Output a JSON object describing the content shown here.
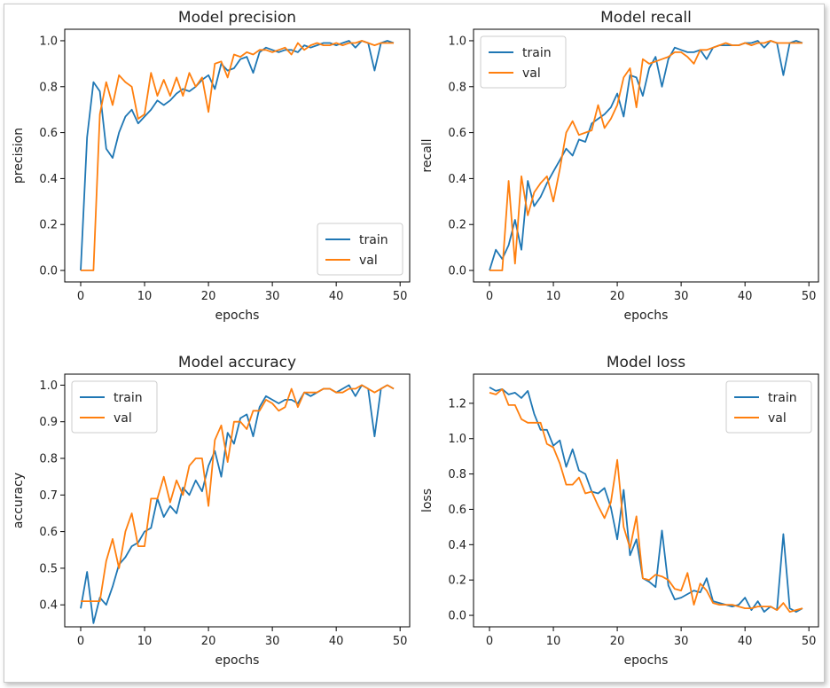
{
  "chart_data": [
    {
      "type": "line",
      "title": "Model precision",
      "xlabel": "epochs",
      "ylabel": "precision",
      "xlim": [
        -2.5,
        51.5
      ],
      "ylim": [
        -0.05,
        1.05
      ],
      "xticks": [
        0,
        10,
        20,
        30,
        40,
        50
      ],
      "yticks": [
        0.0,
        0.2,
        0.4,
        0.6,
        0.8,
        1.0
      ],
      "ytick_labels": [
        "0.0",
        "0.2",
        "0.4",
        "0.6",
        "0.8",
        "1.0"
      ],
      "legend": "bottom-right",
      "x": [
        0,
        1,
        2,
        3,
        4,
        5,
        6,
        7,
        8,
        9,
        10,
        11,
        12,
        13,
        14,
        15,
        16,
        17,
        18,
        19,
        20,
        21,
        22,
        23,
        24,
        25,
        26,
        27,
        28,
        29,
        30,
        31,
        32,
        33,
        34,
        35,
        36,
        37,
        38,
        39,
        40,
        41,
        42,
        43,
        44,
        45,
        46,
        47,
        48,
        49
      ],
      "series": [
        {
          "name": "train",
          "color": "#1f77b4",
          "values": [
            0.0,
            0.58,
            0.82,
            0.78,
            0.53,
            0.49,
            0.6,
            0.67,
            0.7,
            0.64,
            0.67,
            0.7,
            0.74,
            0.72,
            0.74,
            0.77,
            0.79,
            0.78,
            0.8,
            0.83,
            0.85,
            0.79,
            0.9,
            0.87,
            0.88,
            0.92,
            0.93,
            0.86,
            0.95,
            0.97,
            0.96,
            0.95,
            0.96,
            0.96,
            0.95,
            0.98,
            0.97,
            0.98,
            0.99,
            0.99,
            0.98,
            0.99,
            1.0,
            0.97,
            1.0,
            0.99,
            0.87,
            0.99,
            1.0,
            0.99
          ]
        },
        {
          "name": "val",
          "color": "#ff7f0e",
          "values": [
            0.0,
            0.0,
            0.0,
            0.68,
            0.82,
            0.72,
            0.85,
            0.82,
            0.8,
            0.66,
            0.68,
            0.86,
            0.76,
            0.83,
            0.76,
            0.84,
            0.76,
            0.86,
            0.8,
            0.84,
            0.69,
            0.9,
            0.91,
            0.84,
            0.94,
            0.93,
            0.95,
            0.94,
            0.96,
            0.96,
            0.95,
            0.96,
            0.97,
            0.94,
            0.99,
            0.96,
            0.98,
            0.99,
            0.98,
            0.98,
            0.99,
            0.98,
            0.99,
            0.99,
            1.0,
            0.99,
            0.98,
            0.99,
            0.99,
            0.99
          ]
        }
      ]
    },
    {
      "type": "line",
      "title": "Model recall",
      "xlabel": "epochs",
      "ylabel": "recall",
      "xlim": [
        -2.5,
        51.5
      ],
      "ylim": [
        -0.05,
        1.05
      ],
      "xticks": [
        0,
        10,
        20,
        30,
        40,
        50
      ],
      "yticks": [
        0.0,
        0.2,
        0.4,
        0.6,
        0.8,
        1.0
      ],
      "ytick_labels": [
        "0.0",
        "0.2",
        "0.4",
        "0.6",
        "0.8",
        "1.0"
      ],
      "legend": "top-left",
      "x": [
        0,
        1,
        2,
        3,
        4,
        5,
        6,
        7,
        8,
        9,
        10,
        11,
        12,
        13,
        14,
        15,
        16,
        17,
        18,
        19,
        20,
        21,
        22,
        23,
        24,
        25,
        26,
        27,
        28,
        29,
        30,
        31,
        32,
        33,
        34,
        35,
        36,
        37,
        38,
        39,
        40,
        41,
        42,
        43,
        44,
        45,
        46,
        47,
        48,
        49
      ],
      "series": [
        {
          "name": "train",
          "color": "#1f77b4",
          "values": [
            0.0,
            0.09,
            0.05,
            0.11,
            0.22,
            0.09,
            0.39,
            0.28,
            0.32,
            0.38,
            0.43,
            0.48,
            0.53,
            0.5,
            0.57,
            0.56,
            0.64,
            0.66,
            0.68,
            0.71,
            0.77,
            0.67,
            0.85,
            0.84,
            0.76,
            0.88,
            0.93,
            0.8,
            0.92,
            0.97,
            0.96,
            0.95,
            0.95,
            0.96,
            0.92,
            0.97,
            0.98,
            0.98,
            0.98,
            0.98,
            0.99,
            0.99,
            1.0,
            0.97,
            1.0,
            0.99,
            0.85,
            0.99,
            1.0,
            0.99
          ]
        },
        {
          "name": "val",
          "color": "#ff7f0e",
          "values": [
            0.0,
            0.0,
            0.0,
            0.39,
            0.03,
            0.41,
            0.24,
            0.34,
            0.38,
            0.41,
            0.3,
            0.44,
            0.6,
            0.65,
            0.59,
            0.6,
            0.61,
            0.72,
            0.62,
            0.66,
            0.72,
            0.84,
            0.88,
            0.71,
            0.92,
            0.9,
            0.91,
            0.92,
            0.93,
            0.95,
            0.95,
            0.93,
            0.9,
            0.96,
            0.96,
            0.97,
            0.98,
            0.99,
            0.98,
            0.98,
            0.99,
            0.98,
            0.99,
            0.99,
            1.0,
            0.99,
            0.99,
            0.99,
            0.99,
            0.99
          ]
        }
      ]
    },
    {
      "type": "line",
      "title": "Model accuracy",
      "xlabel": "epochs",
      "ylabel": "accuracy",
      "xlim": [
        -2.5,
        51.5
      ],
      "ylim": [
        0.34,
        1.03
      ],
      "xticks": [
        0,
        10,
        20,
        30,
        40,
        50
      ],
      "yticks": [
        0.4,
        0.5,
        0.6,
        0.7,
        0.8,
        0.9,
        1.0
      ],
      "ytick_labels": [
        "0.4",
        "0.5",
        "0.6",
        "0.7",
        "0.8",
        "0.9",
        "1.0"
      ],
      "legend": "top-left",
      "x": [
        0,
        1,
        2,
        3,
        4,
        5,
        6,
        7,
        8,
        9,
        10,
        11,
        12,
        13,
        14,
        15,
        16,
        17,
        18,
        19,
        20,
        21,
        22,
        23,
        24,
        25,
        26,
        27,
        28,
        29,
        30,
        31,
        32,
        33,
        34,
        35,
        36,
        37,
        38,
        39,
        40,
        41,
        42,
        43,
        44,
        45,
        46,
        47,
        48,
        49
      ],
      "series": [
        {
          "name": "train",
          "color": "#1f77b4",
          "values": [
            0.39,
            0.49,
            0.35,
            0.42,
            0.4,
            0.45,
            0.51,
            0.53,
            0.56,
            0.57,
            0.6,
            0.61,
            0.69,
            0.64,
            0.67,
            0.65,
            0.72,
            0.7,
            0.74,
            0.71,
            0.78,
            0.82,
            0.75,
            0.87,
            0.84,
            0.91,
            0.92,
            0.86,
            0.94,
            0.97,
            0.96,
            0.95,
            0.96,
            0.96,
            0.95,
            0.98,
            0.97,
            0.98,
            0.99,
            0.99,
            0.98,
            0.99,
            1.0,
            0.97,
            1.0,
            0.99,
            0.86,
            0.99,
            1.0,
            0.99
          ]
        },
        {
          "name": "val",
          "color": "#ff7f0e",
          "values": [
            0.41,
            0.41,
            0.41,
            0.41,
            0.52,
            0.58,
            0.5,
            0.6,
            0.65,
            0.56,
            0.56,
            0.69,
            0.69,
            0.75,
            0.68,
            0.74,
            0.7,
            0.78,
            0.8,
            0.8,
            0.67,
            0.85,
            0.89,
            0.79,
            0.9,
            0.9,
            0.88,
            0.93,
            0.93,
            0.96,
            0.95,
            0.93,
            0.94,
            0.99,
            0.94,
            0.98,
            0.98,
            0.98,
            0.99,
            0.99,
            0.98,
            0.98,
            0.99,
            0.99,
            1.0,
            0.99,
            0.98,
            0.99,
            1.0,
            0.99
          ]
        }
      ]
    },
    {
      "type": "line",
      "title": "Model loss",
      "xlabel": "epochs",
      "ylabel": "loss",
      "xlim": [
        -2.5,
        51.5
      ],
      "ylim": [
        -0.065,
        1.365
      ],
      "xticks": [
        0,
        10,
        20,
        30,
        40,
        50
      ],
      "yticks": [
        0.0,
        0.2,
        0.4,
        0.6,
        0.8,
        1.0,
        1.2
      ],
      "ytick_labels": [
        "0.0",
        "0.2",
        "0.4",
        "0.6",
        "0.8",
        "1.0",
        "1.2"
      ],
      "legend": "top-right",
      "x": [
        0,
        1,
        2,
        3,
        4,
        5,
        6,
        7,
        8,
        9,
        10,
        11,
        12,
        13,
        14,
        15,
        16,
        17,
        18,
        19,
        20,
        21,
        22,
        23,
        24,
        25,
        26,
        27,
        28,
        29,
        30,
        31,
        32,
        33,
        34,
        35,
        36,
        37,
        38,
        39,
        40,
        41,
        42,
        43,
        44,
        45,
        46,
        47,
        48,
        49
      ],
      "series": [
        {
          "name": "train",
          "color": "#1f77b4",
          "values": [
            1.29,
            1.27,
            1.28,
            1.25,
            1.26,
            1.23,
            1.27,
            1.14,
            1.05,
            1.05,
            0.96,
            0.99,
            0.84,
            0.94,
            0.82,
            0.8,
            0.7,
            0.69,
            0.72,
            0.61,
            0.43,
            0.71,
            0.34,
            0.43,
            0.21,
            0.19,
            0.16,
            0.48,
            0.17,
            0.09,
            0.1,
            0.12,
            0.14,
            0.13,
            0.21,
            0.08,
            0.07,
            0.06,
            0.05,
            0.06,
            0.1,
            0.03,
            0.08,
            0.02,
            0.05,
            0.03,
            0.46,
            0.04,
            0.02,
            0.04
          ]
        },
        {
          "name": "val",
          "color": "#ff7f0e",
          "values": [
            1.26,
            1.25,
            1.28,
            1.19,
            1.19,
            1.11,
            1.09,
            1.09,
            1.09,
            0.97,
            0.95,
            0.86,
            0.74,
            0.74,
            0.78,
            0.69,
            0.7,
            0.62,
            0.55,
            0.64,
            0.88,
            0.5,
            0.38,
            0.56,
            0.21,
            0.2,
            0.23,
            0.22,
            0.2,
            0.15,
            0.14,
            0.24,
            0.06,
            0.18,
            0.14,
            0.07,
            0.06,
            0.06,
            0.06,
            0.05,
            0.04,
            0.04,
            0.05,
            0.05,
            0.05,
            0.03,
            0.07,
            0.02,
            0.03,
            0.04
          ]
        }
      ]
    }
  ]
}
